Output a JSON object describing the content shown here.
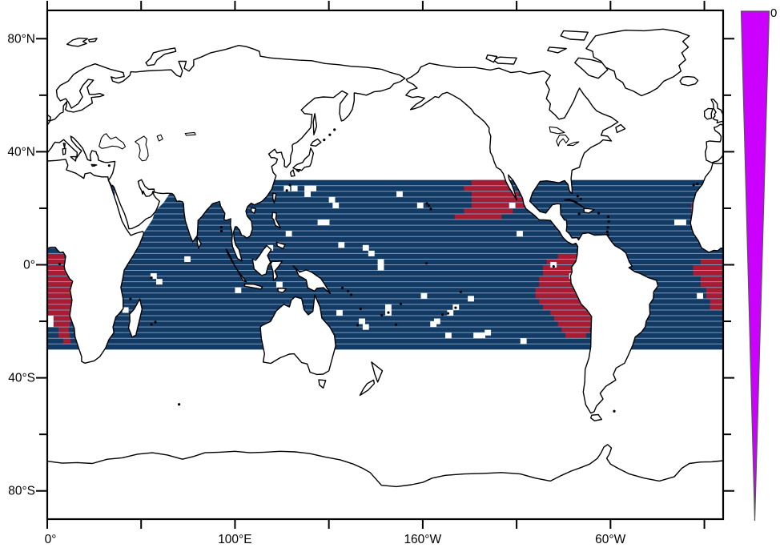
{
  "chart_data": {
    "type": "heatmap",
    "title": "",
    "projection": "equirectangular world map, pacific-centered, longitude 0-360E, latitude 90N-90S",
    "grid": "on (2-degree latitude row lines inside data band)",
    "legend_position": "right wedge colorbar",
    "lon_axis": {
      "range_deg_east": [
        0,
        360
      ],
      "minor_tick_step_deg": 50,
      "ticks_deg": [
        0,
        50,
        100,
        150,
        200,
        250,
        300,
        350
      ],
      "labels": [
        {
          "deg": 0,
          "text": "0°"
        },
        {
          "deg": 100,
          "text": "100°E"
        },
        {
          "deg": 200,
          "text": "160°W"
        },
        {
          "deg": 300,
          "text": "60°W"
        }
      ]
    },
    "lat_axis": {
      "range_deg": [
        -90,
        90
      ],
      "minor_tick_step_deg": 20,
      "ticks_deg": [
        80,
        60,
        40,
        20,
        0,
        -20,
        -40,
        -60,
        -80
      ],
      "major_ticks_deg": [
        80,
        40,
        0,
        -40,
        -80
      ],
      "labels": [
        {
          "deg": 80,
          "text": "80°N"
        },
        {
          "deg": 40,
          "text": "40°N"
        },
        {
          "deg": 0,
          "text": "0°"
        },
        {
          "deg": -40,
          "text": "40°S"
        },
        {
          "deg": -80,
          "text": "80°S"
        }
      ]
    },
    "band": {
      "lat_north": 30,
      "lat_south": -30,
      "row_height_deg": 2,
      "cell_width_deg": 3.33,
      "fill": "#113a64",
      "row_line_color": "#7f98b8"
    },
    "red_color": "#a81c33",
    "red_regions": [
      {
        "name": "northeast-pacific-patch",
        "rows": [
          [
            30,
            226,
            245
          ],
          [
            28,
            222,
            246
          ],
          [
            26,
            226,
            251
          ],
          [
            24,
            226,
            254
          ],
          [
            22,
            226,
            254
          ],
          [
            20,
            222,
            248
          ],
          [
            18,
            217,
            242
          ]
        ]
      },
      {
        "name": "peru-eastern-equatorial-pacific-patch",
        "rows": [
          [
            4,
            272,
            284
          ],
          [
            2,
            266,
            284
          ],
          [
            0,
            264,
            284
          ],
          [
            -2,
            264,
            285
          ],
          [
            -4,
            262,
            286
          ],
          [
            -6,
            262,
            287
          ],
          [
            -8,
            260,
            288
          ],
          [
            -10,
            260,
            289
          ],
          [
            -12,
            262,
            290
          ],
          [
            -14,
            264,
            291
          ],
          [
            -16,
            268,
            291
          ],
          [
            -18,
            270,
            291
          ],
          [
            -20,
            272,
            290
          ],
          [
            -22,
            274,
            289
          ],
          [
            -24,
            276,
            287
          ]
        ]
      },
      {
        "name": "equatorial-atlantic-right-edge-patch",
        "rows": [
          [
            2,
            348,
            360
          ],
          [
            0,
            344,
            360
          ],
          [
            -2,
            344,
            360
          ],
          [
            -4,
            348,
            360
          ],
          [
            -6,
            348,
            360
          ],
          [
            -8,
            351,
            360
          ],
          [
            -10,
            351,
            360
          ],
          [
            -12,
            353,
            360
          ],
          [
            -14,
            353,
            360
          ]
        ]
      },
      {
        "name": "benguela-gulf-of-guinea-left-edge-patch",
        "rows": [
          [
            4,
            0,
            9
          ],
          [
            2,
            0,
            11
          ],
          [
            0,
            0,
            13
          ],
          [
            -2,
            0,
            13.5
          ],
          [
            -4,
            0,
            14.5
          ],
          [
            -6,
            0,
            15
          ],
          [
            -8,
            0,
            15
          ],
          [
            -10,
            0,
            15
          ],
          [
            -12,
            0,
            14.5
          ],
          [
            -14,
            0,
            14
          ],
          [
            -16,
            0,
            13.5
          ],
          [
            -18,
            3.5,
            13.5
          ],
          [
            -20,
            3.5,
            12
          ],
          [
            -22,
            6,
            11.5
          ],
          [
            -24,
            6,
            12
          ],
          [
            -26,
            8.5,
            12.5
          ]
        ]
      },
      {
        "name": "northwest-africa-coast-patch",
        "rows": [
          [
            22,
            343,
            346.5
          ],
          [
            20,
            343,
            346.5
          ],
          [
            18,
            343,
            346
          ]
        ]
      }
    ],
    "missing_cells_lonW_latN": [
      [
        126,
        28
      ],
      [
        130,
        28
      ],
      [
        137,
        28
      ],
      [
        140,
        28
      ],
      [
        137,
        26
      ],
      [
        150,
        24
      ],
      [
        152,
        22
      ],
      [
        144,
        16
      ],
      [
        147,
        16
      ],
      [
        155,
        8
      ],
      [
        168,
        7
      ],
      [
        171,
        5
      ],
      [
        176,
        2
      ],
      [
        176,
        0
      ],
      [
        186,
        26
      ],
      [
        197,
        22
      ],
      [
        122,
        -6
      ],
      [
        100,
        -8
      ],
      [
        117,
        7
      ],
      [
        127,
        12
      ],
      [
        154,
        -16
      ],
      [
        166,
        -19
      ],
      [
        168,
        -21
      ],
      [
        180,
        -14
      ],
      [
        180,
        -16
      ],
      [
        199,
        -10
      ],
      [
        204,
        -20
      ],
      [
        206,
        -19
      ],
      [
        213,
        -16
      ],
      [
        216,
        -14
      ],
      [
        224,
        -11
      ],
      [
        227,
        -24
      ],
      [
        230,
        -24
      ],
      [
        212,
        -24
      ],
      [
        233,
        -23
      ],
      [
        246,
        22
      ],
      [
        250,
        12
      ],
      [
        252,
        -26
      ],
      [
        268,
        1
      ],
      [
        278,
        -3
      ],
      [
        334,
        16
      ],
      [
        337,
        16
      ],
      [
        346,
        -10
      ],
      [
        0,
        -18
      ],
      [
        0,
        -20
      ],
      [
        55,
        -3
      ],
      [
        58,
        -5
      ],
      [
        40,
        -15
      ],
      [
        73,
        3
      ]
    ],
    "no_data_regions": [
      {
        "name": "northwest-arabian-sea-no-data",
        "polygon": [
          [
            36,
            30
          ],
          [
            70,
            30
          ],
          [
            70,
            27
          ],
          [
            66,
            26
          ],
          [
            64,
            24
          ],
          [
            62,
            22
          ],
          [
            59,
            20
          ],
          [
            57,
            18
          ],
          [
            56,
            16
          ],
          [
            54,
            14
          ],
          [
            52,
            12
          ],
          [
            50,
            10
          ],
          [
            48,
            8
          ],
          [
            46,
            6
          ],
          [
            44,
            4
          ],
          [
            40,
            2
          ],
          [
            36,
            2
          ]
        ]
      }
    ],
    "island_dots_lon_lat": [
      [
        204.3,
        19.7
      ],
      [
        203.2,
        20.9
      ],
      [
        202.2,
        21.7
      ],
      [
        269.7,
        -0.6
      ],
      [
        178.2,
        -17.8
      ],
      [
        181.7,
        -16.9
      ],
      [
        166.9,
        -15.6
      ],
      [
        165.3,
        -21.4
      ],
      [
        160.2,
        -9.4
      ],
      [
        161.9,
        -10.6
      ],
      [
        157.2,
        -8.2
      ],
      [
        188.3,
        -13.8
      ],
      [
        185.8,
        -21.2
      ],
      [
        210.5,
        -17.6
      ],
      [
        213.5,
        -17.2
      ],
      [
        217.5,
        -15.2
      ],
      [
        220.3,
        -9.6
      ],
      [
        202,
        0.5
      ],
      [
        92.8,
        11.9
      ],
      [
        92.7,
        13.3
      ],
      [
        55.5,
        -4.6
      ],
      [
        57.6,
        -20.3
      ],
      [
        55.5,
        -21.1
      ],
      [
        44.3,
        -12.1
      ],
      [
        70.2,
        -49.4
      ],
      [
        302,
        -51.8
      ],
      [
        344.3,
        28.2
      ],
      [
        346.3,
        28.6
      ],
      [
        298.8,
        17
      ],
      [
        299.1,
        15.3
      ],
      [
        298.6,
        13.2
      ],
      [
        298.3,
        11.7
      ],
      [
        298.6,
        10.6
      ],
      [
        293.7,
        18.3
      ],
      [
        283.3,
        18
      ],
      [
        282.5,
        24.3
      ],
      [
        284.2,
        23.3
      ],
      [
        147.5,
        44.2
      ],
      [
        150.5,
        46
      ],
      [
        153,
        47.8
      ],
      [
        127.6,
        26.3
      ],
      [
        129.3,
        28.2
      ],
      [
        25,
        35.2
      ],
      [
        33,
        35.1
      ],
      [
        6.6,
        0.3
      ]
    ],
    "colorbar": {
      "shape": "wedge tapering to a point at bottom",
      "color": "#cc00ff",
      "label": "0",
      "label_position": "top-right of wedge"
    },
    "colors": {
      "background": "#ffffff",
      "land_fill": "#ffffff",
      "coast_stroke": "#000000",
      "frame_stroke": "#000000",
      "band_fill": "#113a64",
      "band_row_line": "#7f98b8",
      "red_cells": "#a81c33",
      "colorbar_fill": "#cc00ff"
    }
  }
}
